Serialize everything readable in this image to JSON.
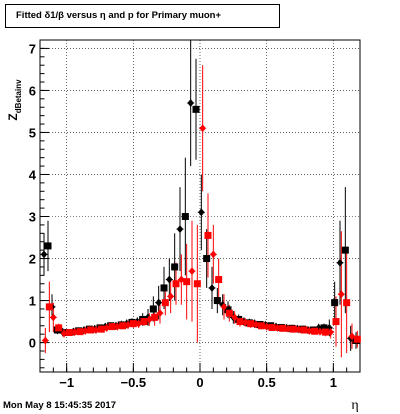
{
  "title": "Fitted δ1/β versus η and p for Primary muon+",
  "timestamp": "Mon May  8 15:45:35 2017",
  "chart_data": {
    "type": "scatter",
    "title": "Fitted δ1/β versus η and p for Primary muon+",
    "xlabel": "η",
    "ylabel": "Z_dBetainv",
    "ylabel_main": "Z",
    "ylabel_sub": "dBetainv",
    "xlim": [
      -1.2,
      1.2
    ],
    "ylim": [
      -0.7,
      7.2
    ],
    "xticks": [
      -1,
      -0.5,
      0,
      0.5,
      1
    ],
    "xtick_labels": [
      "−1",
      "−0.5",
      "0",
      "0.5",
      "1"
    ],
    "yticks": [
      0,
      1,
      2,
      3,
      4,
      5,
      6,
      7
    ],
    "ytick_labels": [
      "0",
      "1",
      "2",
      "3",
      "4",
      "5",
      "6",
      "7"
    ],
    "grid": true,
    "series": [
      {
        "color": "#000000",
        "markers": "diamond/square",
        "x": [
          -1.17,
          -1.14,
          -1.11,
          -1.07,
          -1.03,
          -0.99,
          -0.95,
          -0.91,
          -0.87,
          -0.83,
          -0.79,
          -0.75,
          -0.71,
          -0.67,
          -0.63,
          -0.59,
          -0.55,
          -0.51,
          -0.47,
          -0.43,
          -0.39,
          -0.35,
          -0.31,
          -0.27,
          -0.23,
          -0.19,
          -0.15,
          -0.11,
          -0.07,
          -0.03,
          0.01,
          0.05,
          0.09,
          0.13,
          0.17,
          0.21,
          0.25,
          0.29,
          0.33,
          0.37,
          0.41,
          0.45,
          0.49,
          0.53,
          0.57,
          0.61,
          0.65,
          0.69,
          0.73,
          0.77,
          0.81,
          0.85,
          0.89,
          0.93,
          0.97,
          1.01,
          1.05,
          1.09,
          1.13,
          1.17
        ],
        "y": [
          2.1,
          2.3,
          0.85,
          0.3,
          0.25,
          0.24,
          0.26,
          0.28,
          0.3,
          0.32,
          0.33,
          0.35,
          0.38,
          0.4,
          0.4,
          0.42,
          0.45,
          0.48,
          0.5,
          0.55,
          0.6,
          0.8,
          0.95,
          1.3,
          1.5,
          1.8,
          2.7,
          3.0,
          5.7,
          5.55,
          3.1,
          2.0,
          1.3,
          1.0,
          0.9,
          0.78,
          0.6,
          0.55,
          0.5,
          0.47,
          0.45,
          0.43,
          0.42,
          0.4,
          0.38,
          0.36,
          0.35,
          0.34,
          0.33,
          0.32,
          0.3,
          0.3,
          0.35,
          0.35,
          0.35,
          0.95,
          1.9,
          2.2,
          0.1,
          0.05
        ],
        "err": [
          0.5,
          0.6,
          0.3,
          0.1,
          0.1,
          0.08,
          0.08,
          0.08,
          0.08,
          0.08,
          0.08,
          0.08,
          0.08,
          0.08,
          0.08,
          0.1,
          0.1,
          0.1,
          0.1,
          0.15,
          0.2,
          0.3,
          0.4,
          0.5,
          0.5,
          0.8,
          1.0,
          1.4,
          1.5,
          1.2,
          0.9,
          0.7,
          0.5,
          0.3,
          0.25,
          0.2,
          0.15,
          0.12,
          0.1,
          0.1,
          0.1,
          0.08,
          0.08,
          0.08,
          0.08,
          0.08,
          0.08,
          0.08,
          0.08,
          0.08,
          0.08,
          0.08,
          0.1,
          0.1,
          0.2,
          0.5,
          1.0,
          1.5,
          0.3,
          0.2
        ]
      },
      {
        "color": "#ff0000",
        "markers": "diamond/square",
        "x": [
          -1.16,
          -1.13,
          -1.1,
          -1.06,
          -1.02,
          -0.98,
          -0.94,
          -0.9,
          -0.86,
          -0.82,
          -0.78,
          -0.74,
          -0.7,
          -0.66,
          -0.62,
          -0.58,
          -0.54,
          -0.5,
          -0.46,
          -0.42,
          -0.38,
          -0.34,
          -0.3,
          -0.26,
          -0.22,
          -0.18,
          -0.14,
          -0.1,
          -0.06,
          -0.02,
          0.02,
          0.06,
          0.1,
          0.14,
          0.18,
          0.22,
          0.26,
          0.3,
          0.34,
          0.38,
          0.42,
          0.46,
          0.5,
          0.54,
          0.58,
          0.62,
          0.66,
          0.7,
          0.74,
          0.78,
          0.82,
          0.86,
          0.9,
          0.94,
          0.98,
          1.02,
          1.06,
          1.1,
          1.14,
          1.18
        ],
        "y": [
          0.05,
          0.85,
          0.6,
          0.35,
          0.22,
          0.24,
          0.25,
          0.26,
          0.28,
          0.3,
          0.3,
          0.32,
          0.35,
          0.38,
          0.38,
          0.4,
          0.42,
          0.45,
          0.45,
          0.5,
          0.55,
          0.6,
          0.7,
          0.95,
          1.1,
          1.4,
          1.5,
          1.45,
          1.7,
          1.4,
          5.1,
          2.55,
          2.1,
          1.5,
          0.85,
          0.7,
          0.6,
          0.5,
          0.48,
          0.45,
          0.43,
          0.4,
          0.38,
          0.36,
          0.35,
          0.34,
          0.33,
          0.32,
          0.31,
          0.3,
          0.28,
          0.27,
          0.26,
          0.25,
          0.25,
          0.5,
          1.15,
          0.95,
          0.15,
          0.08
        ],
        "err": [
          0.3,
          0.6,
          0.35,
          0.1,
          0.1,
          0.08,
          0.08,
          0.08,
          0.08,
          0.08,
          0.08,
          0.08,
          0.08,
          0.08,
          0.08,
          0.08,
          0.1,
          0.1,
          0.1,
          0.1,
          0.15,
          0.2,
          0.25,
          0.3,
          0.4,
          0.5,
          0.6,
          0.9,
          1.2,
          1.4,
          1.5,
          1.0,
          0.7,
          0.5,
          0.3,
          0.2,
          0.15,
          0.12,
          0.1,
          0.1,
          0.08,
          0.08,
          0.08,
          0.08,
          0.08,
          0.08,
          0.08,
          0.08,
          0.08,
          0.08,
          0.08,
          0.08,
          0.08,
          0.1,
          0.15,
          0.6,
          1.5,
          1.2,
          0.3,
          0.2
        ]
      }
    ]
  }
}
